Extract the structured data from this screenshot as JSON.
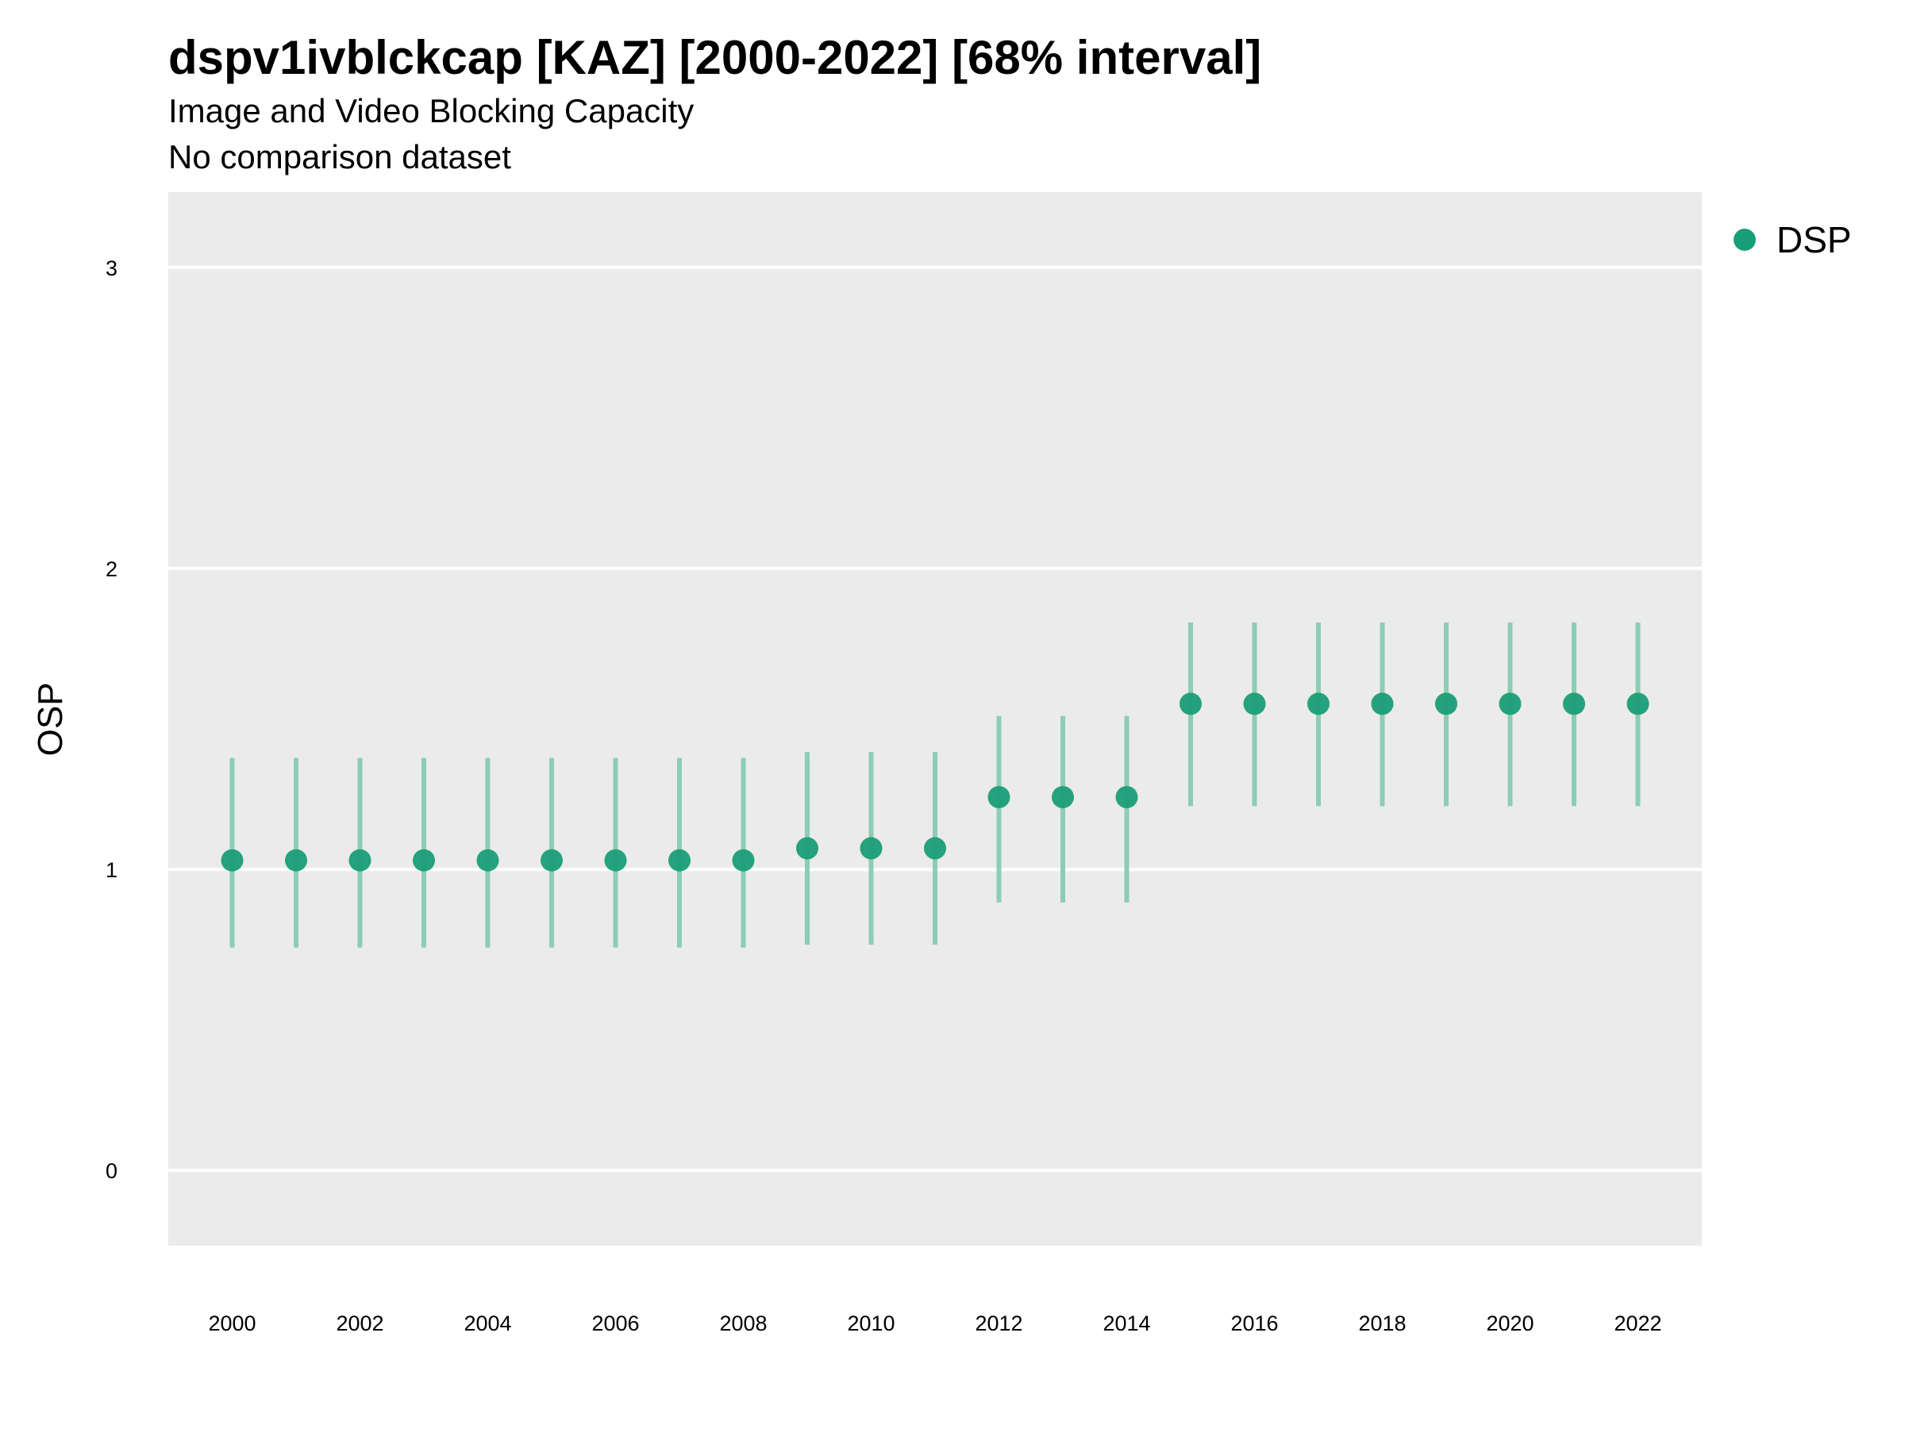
{
  "chart_data": {
    "type": "scatter",
    "title": "dspv1ivblckcap [KAZ] [2000-2022] [68% interval]",
    "subtitle": "Image and Video Blocking Capacity",
    "subtitle2": "No comparison dataset",
    "xlabel": "",
    "ylabel": "OSP",
    "xlim": [
      1999,
      2023
    ],
    "ylim": [
      -0.25,
      3.25
    ],
    "x_ticks": [
      "2000",
      "2002",
      "2004",
      "2006",
      "2008",
      "2010",
      "2012",
      "2014",
      "2016",
      "2018",
      "2020",
      "2022"
    ],
    "y_ticks": [
      "0",
      "1",
      "2",
      "3"
    ],
    "grid": true,
    "legend": {
      "position": "right",
      "entries": [
        "DSP"
      ]
    },
    "colors": {
      "point": "#1a9e77",
      "interval": "#8ccdb5",
      "panel": "#ebebeb",
      "grid": "#ffffff"
    },
    "series": [
      {
        "name": "DSP",
        "x": [
          2000,
          2001,
          2002,
          2003,
          2004,
          2005,
          2006,
          2007,
          2008,
          2009,
          2010,
          2011,
          2012,
          2013,
          2014,
          2015,
          2016,
          2017,
          2018,
          2019,
          2020,
          2021,
          2022
        ],
        "y": [
          1.03,
          1.03,
          1.03,
          1.03,
          1.03,
          1.03,
          1.03,
          1.03,
          1.03,
          1.07,
          1.07,
          1.07,
          1.24,
          1.24,
          1.24,
          1.55,
          1.55,
          1.55,
          1.55,
          1.55,
          1.55,
          1.55,
          1.55
        ],
        "lower": [
          0.74,
          0.74,
          0.74,
          0.74,
          0.74,
          0.74,
          0.74,
          0.74,
          0.74,
          0.75,
          0.75,
          0.75,
          0.89,
          0.89,
          0.89,
          1.21,
          1.21,
          1.21,
          1.21,
          1.21,
          1.21,
          1.21,
          1.21
        ],
        "upper": [
          1.37,
          1.37,
          1.37,
          1.37,
          1.37,
          1.37,
          1.37,
          1.37,
          1.37,
          1.39,
          1.39,
          1.39,
          1.51,
          1.51,
          1.51,
          1.82,
          1.82,
          1.82,
          1.82,
          1.82,
          1.82,
          1.82,
          1.82
        ]
      }
    ]
  }
}
